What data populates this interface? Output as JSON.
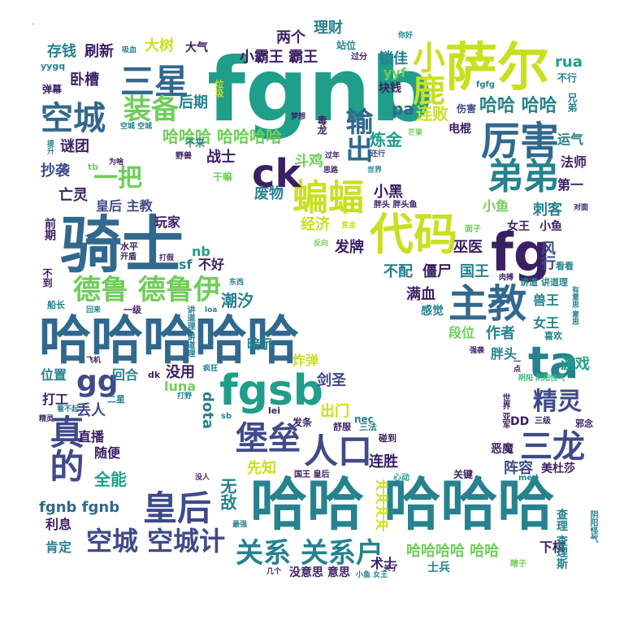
{
  "palette": {
    "navy": "#3b1f64",
    "indigo": "#3f4a8a",
    "blue": "#31688e",
    "teal": "#26828e",
    "green": "#1f9e89",
    "lime": "#35b779",
    "yellowgreen": "#6ece58",
    "yellow": "#c8e020"
  },
  "words": [
    {
      "text": "fgnb",
      "color": "green"
    },
    {
      "text": "骑士",
      "color": "blue"
    },
    {
      "text": "哈哈哈哈哈",
      "color": "blue"
    },
    {
      "text": "哈哈 哈哈哈",
      "color": "teal"
    },
    {
      "text": "萨尔",
      "color": "yellow"
    },
    {
      "text": "代码",
      "color": "yellow"
    },
    {
      "text": "fgsb",
      "color": "green"
    },
    {
      "text": "三星",
      "color": "blue"
    },
    {
      "text": "空城",
      "color": "blue"
    },
    {
      "text": "厉害",
      "color": "blue"
    },
    {
      "text": "主教",
      "color": "blue"
    },
    {
      "text": "蝙蝠",
      "color": "yellow"
    },
    {
      "text": "fg",
      "color": "navy"
    },
    {
      "text": "ck",
      "color": "navy"
    },
    {
      "text": "小鹿",
      "color": "yellow"
    },
    {
      "text": "弟弟",
      "color": "teal"
    },
    {
      "text": "装备",
      "color": "yellowgreen"
    },
    {
      "text": "一把",
      "color": "yellowgreen"
    },
    {
      "text": "输出",
      "color": "blue"
    },
    {
      "text": "德鲁 德鲁伊",
      "color": "yellowgreen"
    },
    {
      "text": "堡垒",
      "color": "indigo"
    },
    {
      "text": "人口",
      "color": "indigo"
    },
    {
      "text": "皇后",
      "color": "indigo"
    },
    {
      "text": "空城 空城计",
      "color": "indigo"
    },
    {
      "text": "真的",
      "color": "indigo"
    },
    {
      "text": "三龙",
      "color": "indigo"
    },
    {
      "text": "关系 关系户",
      "color": "teal"
    },
    {
      "text": "ta",
      "color": "teal"
    },
    {
      "text": "精灵",
      "color": "indigo"
    },
    {
      "text": "gg",
      "color": "indigo"
    },
    {
      "text": "哈哈哈 哈哈哈哈",
      "color": "yellowgreen"
    },
    {
      "text": "小霸王 霸王",
      "color": "navy"
    },
    {
      "text": "哈哈 哈哈",
      "color": "teal"
    },
    {
      "text": "炼金",
      "color": "green"
    },
    {
      "text": "连败",
      "color": "yellow"
    },
    {
      "text": "后期",
      "color": "teal"
    },
    {
      "text": "锁佳",
      "color": "teal"
    },
    {
      "text": "两个",
      "color": "navy"
    },
    {
      "text": "理财",
      "color": "teal"
    },
    {
      "text": "大树",
      "color": "yellow"
    },
    {
      "text": "大气",
      "color": "navy"
    },
    {
      "text": "存钱",
      "color": "teal"
    },
    {
      "text": "刷新",
      "color": "navy"
    },
    {
      "text": "卧槽",
      "color": "navy"
    },
    {
      "text": "谜团",
      "color": "navy"
    },
    {
      "text": "抄袭",
      "color": "indigo"
    },
    {
      "text": "战士",
      "color": "navy"
    },
    {
      "text": "斗鸡",
      "color": "yellowgreen"
    },
    {
      "text": "废物",
      "color": "teal"
    },
    {
      "text": "经济",
      "color": "yellow"
    },
    {
      "text": "发牌",
      "color": "navy"
    },
    {
      "text": "小黑",
      "color": "navy"
    },
    {
      "text": "亡灵",
      "color": "navy"
    },
    {
      "text": "皇后 主教",
      "color": "indigo"
    },
    {
      "text": "玩家",
      "color": "navy"
    },
    {
      "text": "法师",
      "color": "navy"
    },
    {
      "text": "第一",
      "color": "navy"
    },
    {
      "text": "运气",
      "color": "teal"
    },
    {
      "text": "刺客",
      "color": "teal"
    },
    {
      "text": "小鱼",
      "color": "yellowgreen"
    },
    {
      "text": "女王",
      "color": "navy"
    },
    {
      "text": "小鱼",
      "color": "navy"
    },
    {
      "text": "巫医",
      "color": "navy"
    },
    {
      "text": "风行",
      "color": "indigo"
    },
    {
      "text": "不配",
      "color": "teal"
    },
    {
      "text": "僵尸",
      "color": "navy"
    },
    {
      "text": "国王",
      "color": "teal"
    },
    {
      "text": "满血",
      "color": "navy"
    },
    {
      "text": "感觉",
      "color": "teal"
    },
    {
      "text": "兽王",
      "color": "teal"
    },
    {
      "text": "女王",
      "color": "teal"
    },
    {
      "text": "段位",
      "color": "yellowgreen"
    },
    {
      "text": "作者",
      "color": "teal"
    },
    {
      "text": "胖头",
      "color": "teal"
    },
    {
      "text": "游戏",
      "color": "green"
    },
    {
      "text": "潮汐",
      "color": "teal"
    },
    {
      "text": "暗示",
      "color": "teal"
    },
    {
      "text": "炸弹",
      "color": "yellow"
    },
    {
      "text": "剑圣",
      "color": "indigo"
    },
    {
      "text": "没用",
      "color": "navy"
    },
    {
      "text": "luna",
      "color": "yellowgreen"
    },
    {
      "text": "dota",
      "color": "teal"
    },
    {
      "text": "出门",
      "color": "yellow"
    },
    {
      "text": "nec",
      "color": "teal"
    },
    {
      "text": "丢人",
      "color": "indigo"
    },
    {
      "text": "位置",
      "color": "teal"
    },
    {
      "text": "回合",
      "color": "teal"
    },
    {
      "text": "打工",
      "color": "navy"
    },
    {
      "text": "直播",
      "color": "navy"
    },
    {
      "text": "随便",
      "color": "navy"
    },
    {
      "text": "全能",
      "color": "green"
    },
    {
      "text": "先知",
      "color": "yellow"
    },
    {
      "text": "无敌",
      "color": "teal"
    },
    {
      "text": "连胜",
      "color": "navy"
    },
    {
      "text": "阵容",
      "color": "indigo"
    },
    {
      "text": "美杜莎",
      "color": "navy"
    },
    {
      "text": "恶魔",
      "color": "navy"
    },
    {
      "text": "fgnb fgnb",
      "color": "blue"
    },
    {
      "text": "利息",
      "color": "navy"
    },
    {
      "text": "肯定",
      "color": "teal"
    },
    {
      "text": "哈哈哈哈 哈哈",
      "color": "yellowgreen"
    },
    {
      "text": "下棋",
      "color": "navy"
    },
    {
      "text": "士兵",
      "color": "teal"
    },
    {
      "text": "没意思 意思",
      "color": "navy"
    },
    {
      "text": "冲冲冲冲",
      "color": "yellow"
    },
    {
      "text": "术士",
      "color": "navy"
    },
    {
      "text": "不好",
      "color": "navy"
    },
    {
      "text": "nb",
      "color": "green"
    },
    {
      "text": "sf",
      "color": "teal"
    },
    {
      "text": "rua",
      "color": "green"
    },
    {
      "text": "不行",
      "color": "teal"
    },
    {
      "text": "yyf",
      "color": "yellowgreen"
    },
    {
      "text": "pa",
      "color": "blue"
    },
    {
      "text": "块钱",
      "color": "navy"
    },
    {
      "text": "伤害",
      "color": "indigo"
    },
    {
      "text": "电棍",
      "color": "navy"
    },
    {
      "text": "兄弟",
      "color": "teal"
    },
    {
      "text": "站位",
      "color": "teal"
    },
    {
      "text": "过分",
      "color": "navy"
    },
    {
      "text": "你好",
      "color": "teal"
    },
    {
      "text": "fgfg",
      "color": "teal"
    },
    {
      "text": "毒龙",
      "color": "navy"
    },
    {
      "text": "干嘛",
      "color": "yellowgreen"
    },
    {
      "text": "吸血",
      "color": "teal"
    },
    {
      "text": "弹幕",
      "color": "navy"
    },
    {
      "text": "yygq",
      "color": "teal"
    },
    {
      "text": "不来",
      "color": "teal"
    },
    {
      "text": "野兽",
      "color": "navy"
    },
    {
      "text": "思路",
      "color": "navy"
    },
    {
      "text": "世界",
      "color": "teal"
    },
    {
      "text": "过年",
      "color": "navy"
    },
    {
      "text": "还行",
      "color": "indigo"
    },
    {
      "text": "芒果",
      "color": "yellowgreen"
    },
    {
      "text": "胖头 胖头鱼",
      "color": "navy"
    },
    {
      "text": "赏金",
      "color": "yellow"
    },
    {
      "text": "面子",
      "color": "yellowgreen"
    },
    {
      "text": "对面",
      "color": "navy"
    },
    {
      "text": "看看",
      "color": "teal"
    },
    {
      "text": "肉搏",
      "color": "navy"
    },
    {
      "text": "讲道 讲道理",
      "color": "teal"
    },
    {
      "text": "喜欢",
      "color": "teal"
    },
    {
      "text": "强袭",
      "color": "navy"
    },
    {
      "text": "一点",
      "color": "navy"
    },
    {
      "text": "阴阳 阴阳怪气",
      "color": "lime"
    },
    {
      "text": "三级",
      "color": "navy"
    },
    {
      "text": "邪念",
      "color": "navy"
    },
    {
      "text": "DD",
      "color": "navy"
    },
    {
      "text": "med",
      "color": "teal"
    },
    {
      "text": "关键",
      "color": "navy"
    },
    {
      "text": "心动",
      "color": "green"
    },
    {
      "text": "碰到",
      "color": "navy"
    },
    {
      "text": "舒服",
      "color": "navy"
    },
    {
      "text": "三法",
      "color": "teal"
    },
    {
      "text": "发条",
      "color": "navy"
    },
    {
      "text": "国王 皇后",
      "color": "navy"
    },
    {
      "text": "关了",
      "color": "navy"
    },
    {
      "text": "几个",
      "color": "navy"
    },
    {
      "text": "小鱼 女王",
      "color": "teal"
    },
    {
      "text": "瞎子",
      "color": "yellowgreen"
    },
    {
      "text": "查理 查理斯",
      "color": "teal"
    },
    {
      "text": "阴阳怪气",
      "color": "teal"
    },
    {
      "text": "不到",
      "color": "navy"
    },
    {
      "text": "前期",
      "color": "navy"
    },
    {
      "text": "开盾",
      "color": "navy"
    },
    {
      "text": "打假",
      "color": "navy"
    },
    {
      "text": "水平",
      "color": "navy"
    },
    {
      "text": "一级",
      "color": "navy"
    },
    {
      "text": "回来",
      "color": "teal"
    },
    {
      "text": "船长",
      "color": "teal"
    },
    {
      "text": "loa",
      "color": "teal"
    },
    {
      "text": "东西",
      "color": "teal"
    },
    {
      "text": "飞机",
      "color": "navy"
    },
    {
      "text": "疯狂",
      "color": "teal"
    },
    {
      "text": "dk",
      "color": "navy"
    },
    {
      "text": "二星",
      "color": "teal"
    },
    {
      "text": "打野",
      "color": "teal"
    },
    {
      "text": "sb",
      "color": "teal"
    },
    {
      "text": "lei",
      "color": "navy"
    },
    {
      "text": "看不起",
      "color": "teal"
    },
    {
      "text": "精灵",
      "color": "navy"
    },
    {
      "text": "没人",
      "color": "navy"
    },
    {
      "text": "最强",
      "color": "teal"
    },
    {
      "text": "tb",
      "color": "yellowgreen"
    },
    {
      "text": "为啥",
      "color": "navy"
    },
    {
      "text": "提升",
      "color": "teal"
    },
    {
      "text": "反向",
      "color": "yellowgreen"
    },
    {
      "text": "垃圾",
      "color": "yellow"
    },
    {
      "text": "空城 空城",
      "color": "teal"
    },
    {
      "text": "梦想",
      "color": "navy"
    },
    {
      "text": "讲道理 讲道理",
      "color": "teal"
    },
    {
      "text": "高端",
      "color": "teal"
    },
    {
      "text": "世界 亚军",
      "color": "navy"
    },
    {
      "text": "有意思 意思",
      "color": "teal"
    }
  ]
}
